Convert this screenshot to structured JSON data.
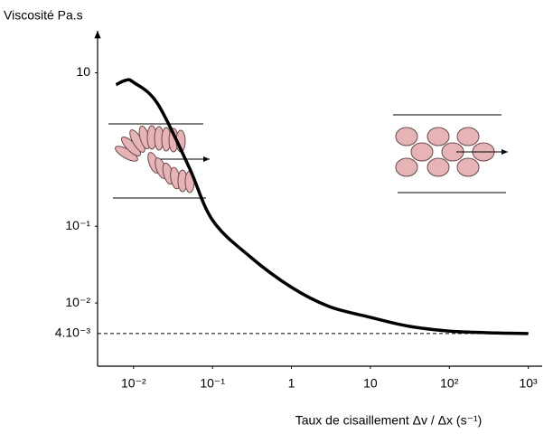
{
  "chart_data": {
    "type": "line",
    "y_label": "Viscosité Pa.s",
    "x_label": "Taux de cisaillement  Δv / Δx (s⁻¹)",
    "log_x": true,
    "log_y": true,
    "x": [
      0.006,
      0.008,
      0.01,
      0.02,
      0.05,
      0.1,
      0.3,
      1,
      3,
      10,
      30,
      100,
      300,
      1000
    ],
    "series": [
      {
        "color": "#000000",
        "values": [
          7,
          8,
          7.5,
          4,
          0.6,
          0.12,
          0.04,
          0.016,
          0.009,
          0.0065,
          0.005,
          0.0043,
          0.0041,
          0.004
        ]
      }
    ],
    "xlim": [
      0.0035,
      1500
    ],
    "xticks": [
      {
        "value": 0.01,
        "label": "10⁻²"
      },
      {
        "value": 0.1,
        "label": "10⁻¹"
      },
      1,
      10,
      {
        "value": 100,
        "label": "10²"
      },
      {
        "value": 1000,
        "label": "10³"
      }
    ],
    "ylim": [
      0.0015,
      30
    ],
    "yticks": [
      10,
      {
        "value": 0.1,
        "label": "10⁻¹"
      },
      {
        "value": 0.01,
        "label": "10⁻²"
      },
      {
        "value": 0.004,
        "label": "4.10⁻³"
      }
    ],
    "grid": false
  }
}
